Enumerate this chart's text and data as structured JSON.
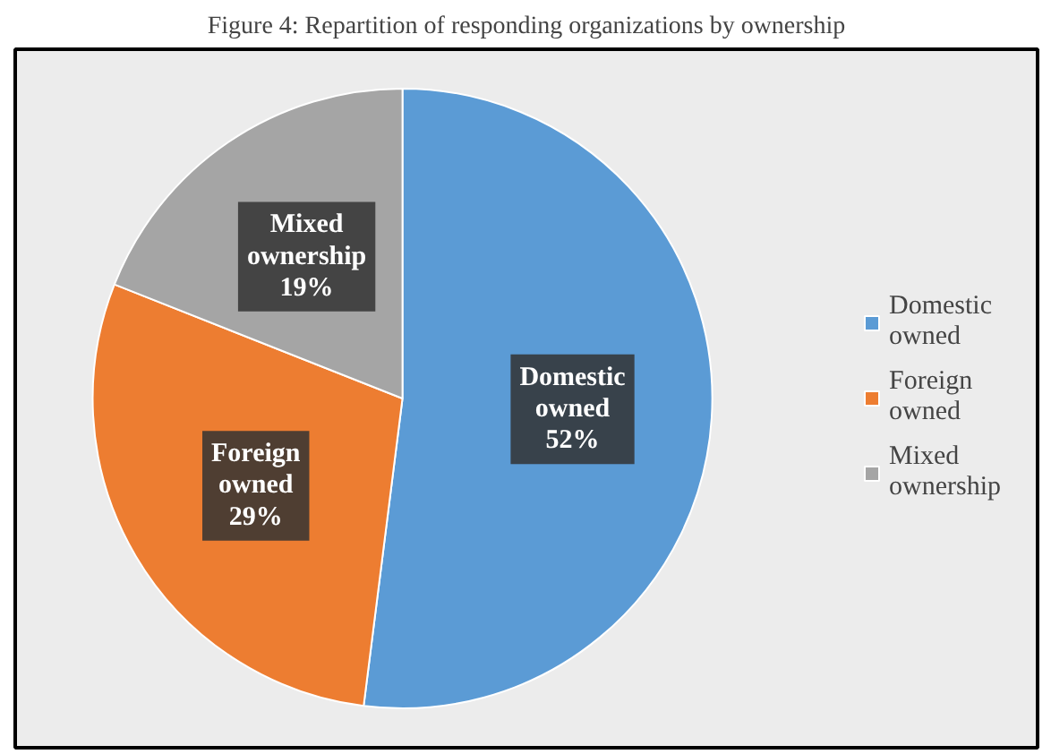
{
  "chart_data": {
    "type": "pie",
    "title": "Figure 4: Repartition of responding organizations by ownership",
    "categories": [
      "Domestic owned",
      "Foreign owned",
      "Mixed ownership"
    ],
    "values": [
      52,
      29,
      19
    ],
    "colors": [
      "#5b9bd5",
      "#ed7d31",
      "#a5a5a5"
    ],
    "value_labels": [
      "52%",
      "29%",
      "19%"
    ],
    "legend": "right"
  }
}
